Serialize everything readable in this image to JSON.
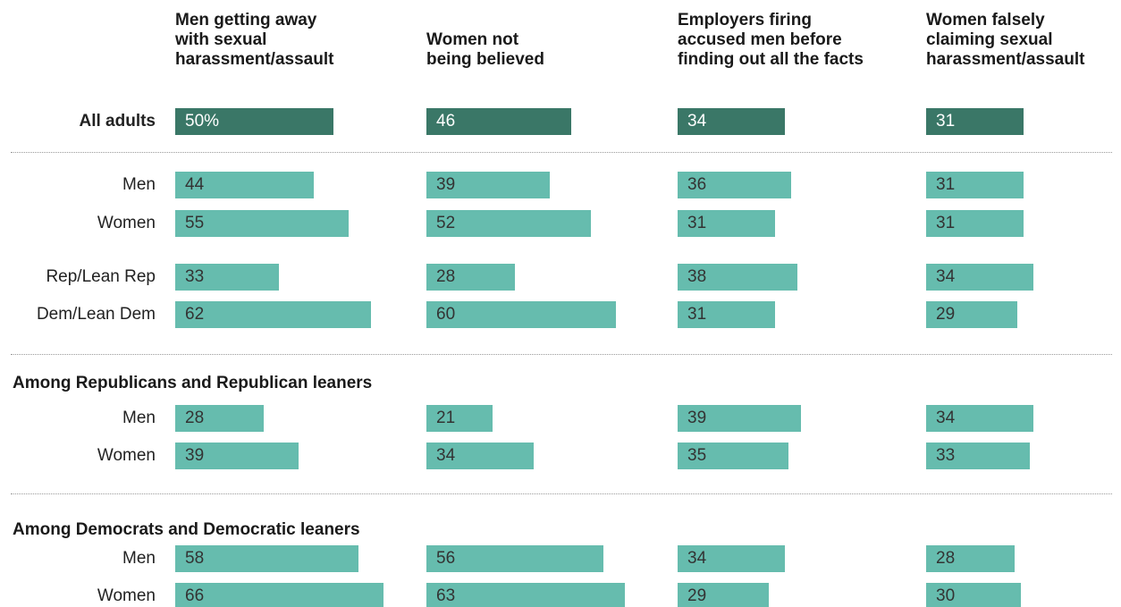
{
  "chart_data": {
    "type": "bar",
    "orientation": "horizontal",
    "categories": [
      "Men getting away with sexual harassment/assault",
      "Women not being believed",
      "Employers firing accused men before finding out all the facts",
      "Women falsely claiming sexual harassment/assault"
    ],
    "column_headers": [
      [
        "Men getting away",
        "with sexual",
        "harassment/assault"
      ],
      [
        "Women not",
        "being believed"
      ],
      [
        "Employers firing",
        "accused men before",
        "finding out all the facts"
      ],
      [
        "Women falsely",
        "claiming sexual",
        "harassment/assault"
      ]
    ],
    "sections": [
      {
        "heading": "",
        "rows": [
          {
            "label": "All adults",
            "bold": true,
            "values": [
              50,
              46,
              34,
              31
            ],
            "value_labels": [
              "50%",
              "46",
              "34",
              "31"
            ]
          }
        ]
      },
      {
        "heading": "",
        "rows": [
          {
            "label": "Men",
            "values": [
              44,
              39,
              36,
              31
            ],
            "value_labels": [
              "44",
              "39",
              "36",
              "31"
            ]
          },
          {
            "label": "Women",
            "values": [
              55,
              52,
              31,
              31
            ],
            "value_labels": [
              "55",
              "52",
              "31",
              "31"
            ]
          },
          {
            "label": "Rep/Lean Rep",
            "values": [
              33,
              28,
              38,
              34
            ],
            "value_labels": [
              "33",
              "28",
              "38",
              "34"
            ]
          },
          {
            "label": "Dem/Lean Dem",
            "values": [
              62,
              60,
              31,
              29
            ],
            "value_labels": [
              "62",
              "60",
              "31",
              "29"
            ]
          }
        ]
      },
      {
        "heading": "Among Republicans and Republican leaners",
        "rows": [
          {
            "label": "Men",
            "values": [
              28,
              21,
              39,
              34
            ],
            "value_labels": [
              "28",
              "21",
              "39",
              "34"
            ]
          },
          {
            "label": "Women",
            "values": [
              39,
              34,
              35,
              33
            ],
            "value_labels": [
              "39",
              "34",
              "35",
              "33"
            ]
          }
        ]
      },
      {
        "heading": "Among Democrats and Democratic leaners",
        "rows": [
          {
            "label": "Men",
            "values": [
              58,
              56,
              34,
              28
            ],
            "value_labels": [
              "58",
              "56",
              "34",
              "28"
            ]
          },
          {
            "label": "Women",
            "values": [
              66,
              63,
              29,
              30
            ],
            "value_labels": [
              "66",
              "63",
              "29",
              "30"
            ]
          }
        ]
      }
    ],
    "grid": false,
    "colors": {
      "highlight": "#3a7767",
      "bar": "#66bcae"
    }
  }
}
